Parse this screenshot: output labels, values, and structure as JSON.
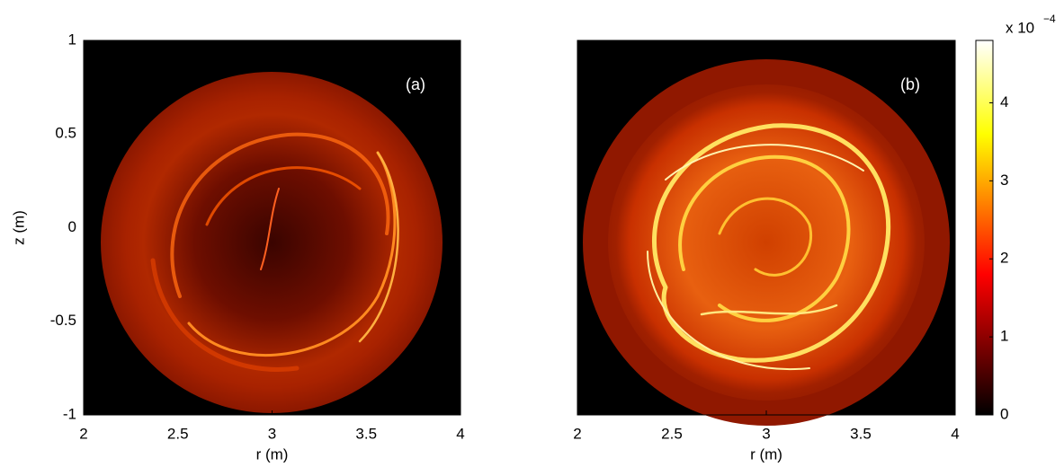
{
  "chart_data": [
    {
      "type": "heatmap",
      "label": "(a)",
      "xlabel": "r (m)",
      "ylabel": "z (m)",
      "xlim": [
        2,
        4
      ],
      "ylim": [
        -1,
        1
      ],
      "xticks": [
        2,
        2.5,
        3,
        3.5,
        4
      ],
      "yticks": [
        -1,
        -0.5,
        0,
        0.5,
        1
      ]
    },
    {
      "type": "heatmap",
      "label": "(b)",
      "xlabel": "r (m)",
      "xlim": [
        2,
        4
      ],
      "ylim": [
        -1,
        1
      ],
      "xticks": [
        2,
        2.5,
        3,
        3.5,
        4
      ],
      "colorbar": {
        "clim": [
          0,
          4.8
        ],
        "ticks": [
          0,
          1,
          2,
          3,
          4
        ],
        "multiplier": "x 10",
        "exponent": "−4"
      }
    }
  ]
}
